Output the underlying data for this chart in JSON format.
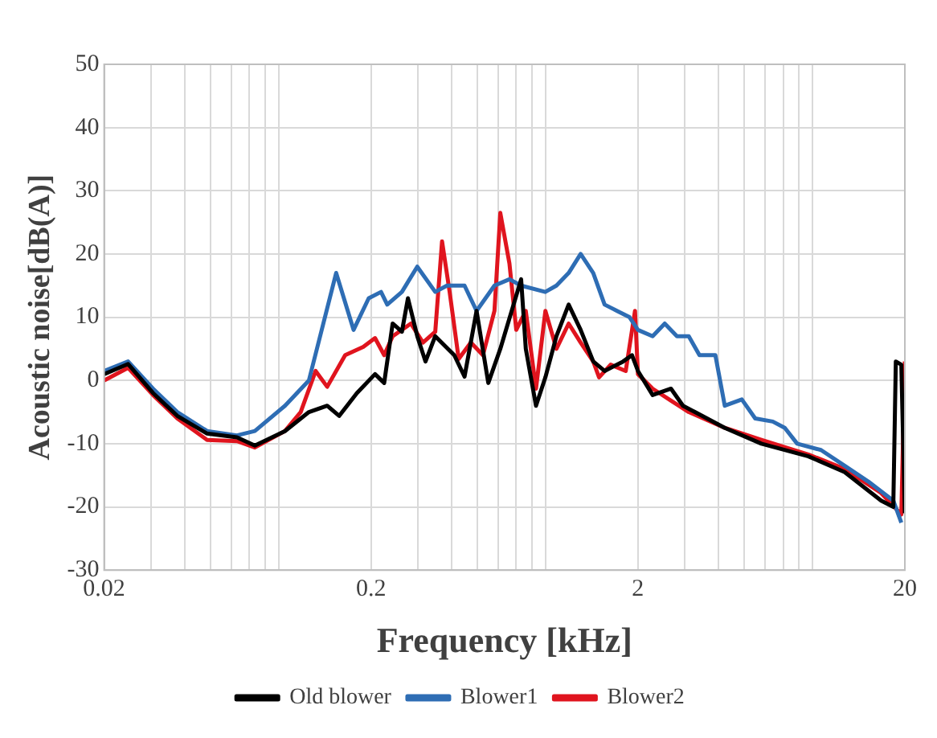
{
  "chart_data": {
    "type": "line",
    "xlabel": "Frequency [kHz]",
    "ylabel": "Acoustic noise[dB(A)]",
    "log": "x",
    "grid": true,
    "legend": "bottom",
    "marker": "none",
    "line_style": "solid",
    "xlim": [
      0.02,
      20
    ],
    "xticks": [
      0.02,
      {
        "value": 0.03,
        "label": null
      },
      {
        "value": 0.04,
        "label": null
      },
      {
        "value": 0.05,
        "label": null
      },
      {
        "value": 0.06,
        "label": null
      },
      {
        "value": 0.07,
        "label": null
      },
      {
        "value": 0.08,
        "label": null
      },
      {
        "value": 0.09,
        "label": null
      },
      0.2,
      {
        "value": 0.3,
        "label": null
      },
      {
        "value": 0.4,
        "label": null
      },
      {
        "value": 0.5,
        "label": null
      },
      {
        "value": 0.6,
        "label": null
      },
      {
        "value": 0.7,
        "label": null
      },
      {
        "value": 0.8,
        "label": null
      },
      {
        "value": 0.9,
        "label": null
      },
      2,
      {
        "value": 3,
        "label": null
      },
      {
        "value": 4,
        "label": null
      },
      {
        "value": 5,
        "label": null
      },
      {
        "value": 6,
        "label": null
      },
      {
        "value": 7,
        "label": null
      },
      {
        "value": 8,
        "label": null
      },
      {
        "value": 9,
        "label": null
      },
      20
    ],
    "ylim": [
      -30,
      50
    ],
    "yticks": [
      -30,
      -20,
      -10,
      0,
      10,
      20,
      30,
      40,
      50
    ],
    "series": [
      {
        "name": "Old blower",
        "color": "#000000",
        "x": [
          0.02,
          0.0246,
          0.0305,
          0.0376,
          0.0486,
          0.0629,
          0.0734,
          0.0952,
          0.117,
          0.137,
          0.152,
          0.177,
          0.207,
          0.224,
          0.241,
          0.261,
          0.275,
          0.298,
          0.32,
          0.348,
          0.41,
          0.448,
          0.497,
          0.55,
          0.61,
          0.73,
          0.76,
          0.83,
          0.9,
          0.99,
          1.1,
          1.22,
          1.36,
          1.5,
          1.76,
          1.9,
          2,
          2.27,
          2.66,
          2.95,
          3.27,
          4.23,
          5.8,
          8.7,
          11.9,
          16.3,
          18.1,
          18.5,
          19.4,
          20
        ],
        "values": [
          1,
          2.6,
          -2,
          -5.6,
          -8.4,
          -9,
          -10.3,
          -8,
          -5,
          -4,
          -5.6,
          -2,
          1,
          -0.4,
          9,
          7.7,
          13,
          7,
          3,
          7,
          4,
          0.6,
          11,
          -0.4,
          5,
          16,
          5,
          -4,
          0.5,
          7,
          12,
          8,
          3,
          1.5,
          3,
          4,
          1.5,
          -2.3,
          -1.3,
          -4,
          -5,
          -7.5,
          -10,
          -12,
          -14.5,
          -19,
          -20,
          3,
          2.5,
          -21
        ]
      },
      {
        "name": "Blower1",
        "color": "#2e6db4",
        "x": [
          0.02,
          0.0246,
          0.0305,
          0.0376,
          0.0486,
          0.0629,
          0.0734,
          0.0952,
          0.117,
          0.148,
          0.172,
          0.196,
          0.218,
          0.23,
          0.261,
          0.298,
          0.348,
          0.385,
          0.448,
          0.497,
          0.58,
          0.66,
          0.73,
          0.899,
          0.99,
          1.1,
          1.22,
          1.36,
          1.5,
          1.67,
          1.86,
          2,
          2.27,
          2.52,
          2.8,
          3.1,
          3.4,
          3.9,
          4.23,
          4.9,
          5.5,
          6.4,
          7.1,
          7.9,
          9.7,
          11.9,
          14.6,
          18.1,
          19.4
        ],
        "values": [
          1.5,
          3,
          -1.3,
          -5,
          -8,
          -8.7,
          -8,
          -4,
          0,
          17,
          8,
          13,
          14,
          12,
          14,
          18,
          14,
          15,
          15,
          11,
          15,
          16,
          15,
          14,
          15,
          17,
          20,
          17,
          12,
          11,
          10,
          8,
          7,
          9,
          7,
          7,
          4,
          4,
          -4,
          -3,
          -6,
          -6.5,
          -7.5,
          -10,
          -11,
          -13.5,
          -16,
          -19,
          -22.5
        ]
      },
      {
        "name": "Blower2",
        "color": "#e0141e",
        "x": [
          0.02,
          0.0246,
          0.0305,
          0.0376,
          0.0486,
          0.0629,
          0.0734,
          0.0952,
          0.109,
          0.124,
          0.137,
          0.16,
          0.187,
          0.207,
          0.224,
          0.241,
          0.282,
          0.313,
          0.348,
          0.369,
          0.394,
          0.426,
          0.473,
          0.525,
          0.58,
          0.61,
          0.66,
          0.7,
          0.76,
          0.83,
          0.9,
          0.99,
          1.1,
          1.22,
          1.36,
          1.43,
          1.58,
          1.8,
          1.95,
          2,
          2.27,
          2.66,
          3.1,
          4.23,
          5.8,
          8.7,
          11.9,
          16.3,
          19.4,
          20
        ],
        "values": [
          0,
          2,
          -2.3,
          -6,
          -9.4,
          -9.6,
          -10.6,
          -8,
          -5,
          1.5,
          -1,
          4,
          5.3,
          6.7,
          4,
          7,
          9,
          6,
          7.7,
          22,
          14,
          3.4,
          6,
          4,
          11,
          26.5,
          18.5,
          8,
          11,
          -1.3,
          11,
          5,
          9,
          6,
          3,
          0.5,
          2.5,
          1.5,
          11,
          1,
          -1.3,
          -3.2,
          -5,
          -7.5,
          -9.4,
          -11.7,
          -14,
          -17.8,
          -21.2,
          3
        ]
      }
    ]
  }
}
